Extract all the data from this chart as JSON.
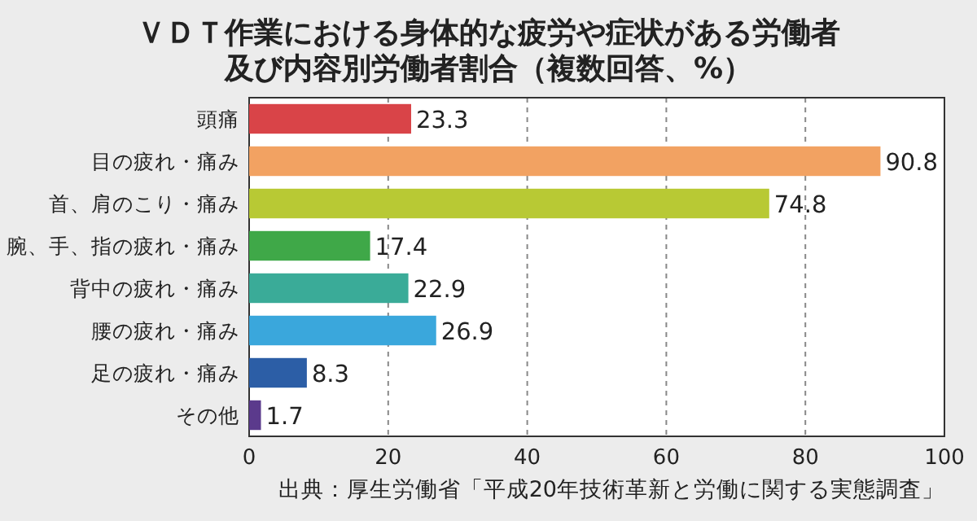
{
  "chart_data": {
    "type": "bar",
    "orientation": "horizontal",
    "title": "ＶＤＴ作業における身体的な疲労や症状がある労働者及び内容別労働者割合（複数回答、%）",
    "categories": [
      "頭痛",
      "目の疲れ・痛み",
      "首、肩のこり・痛み",
      "腕、手、指の疲れ・痛み",
      "背中の疲れ・痛み",
      "腰の疲れ・痛み",
      "足の疲れ・痛み",
      "その他"
    ],
    "values": [
      23.3,
      90.8,
      74.8,
      17.4,
      22.9,
      26.9,
      8.3,
      1.7
    ],
    "colors": [
      "#d94448",
      "#f2a262",
      "#b8c934",
      "#3fa848",
      "#3aab98",
      "#3aa7dc",
      "#2c5ea6",
      "#5b3a8c"
    ],
    "xlim": [
      0,
      100
    ],
    "xticks": [
      0,
      20,
      40,
      60,
      80,
      100
    ],
    "grid": "x",
    "data_labels": true,
    "annotations": [
      "出典：厚生労働省「平成20年技術革新と労働に関する実態調査」"
    ]
  }
}
